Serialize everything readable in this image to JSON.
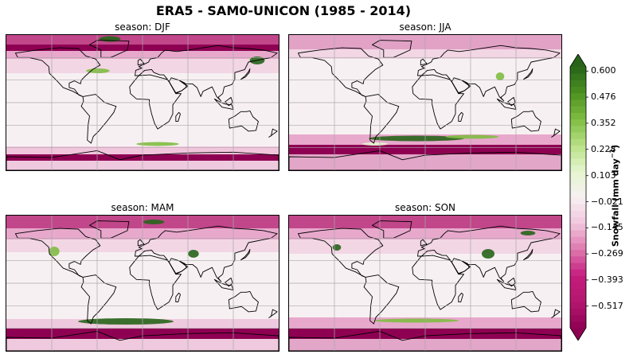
{
  "figure": {
    "title": "ERA5 - SAM0-UNICON (1985 - 2014)"
  },
  "panels": [
    {
      "id": "djf",
      "title": "season: DJF"
    },
    {
      "id": "jja",
      "title": "season: JJA"
    },
    {
      "id": "mam",
      "title": "season: MAM"
    },
    {
      "id": "son",
      "title": "season: SON"
    }
  ],
  "colorbar": {
    "label": "Snowfall (mm day",
    "label_sup": "−1",
    "label_close": ")",
    "ticks": [
      "0.600",
      "0.476",
      "0.352",
      "0.228",
      "0.103",
      "−0.021",
      "−0.145",
      "−0.269",
      "−0.393",
      "−0.517"
    ],
    "range": [
      -0.62,
      0.62
    ],
    "colors": {
      "pos_strong": "#276419",
      "pos_mid": "#7fbc41",
      "pos_light": "#e6f5d0",
      "neutral": "#f7f0f2",
      "neg_light": "#f1c6dd",
      "neg_mid": "#c51b7d",
      "neg_strong": "#8e0152"
    },
    "colormap": "PiYG"
  }
}
